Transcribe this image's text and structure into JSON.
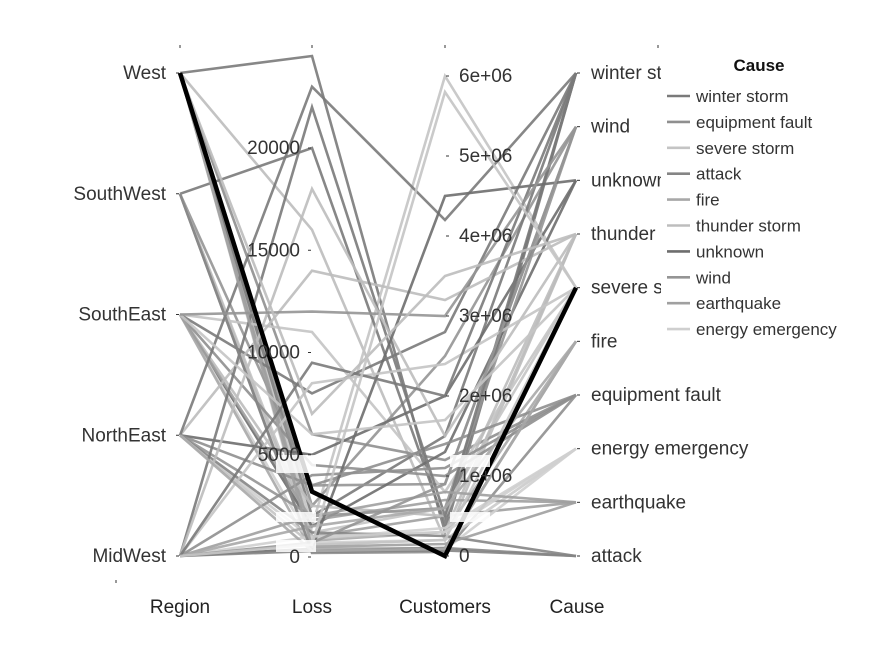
{
  "chart_data": {
    "type": "parallel-coordinates",
    "dimensions": [
      "Region",
      "Loss",
      "Customers",
      "Cause"
    ],
    "axes": {
      "Region": {
        "categories": [
          "MidWest",
          "NorthEast",
          "SouthEast",
          "SouthWest",
          "West"
        ]
      },
      "Loss": {
        "range": [
          0,
          25000
        ],
        "ticks": [
          0,
          5000,
          10000,
          15000,
          20000
        ],
        "tick_labels": [
          "0",
          "5000",
          "10000",
          "15000",
          "20000"
        ]
      },
      "Customers": {
        "range": [
          0,
          6300000
        ],
        "ticks": [
          0,
          1000000,
          2000000,
          3000000,
          4000000,
          5000000,
          6000000
        ],
        "tick_labels": [
          "0",
          "1e+06",
          "2e+06",
          "3e+06",
          "4e+06",
          "5e+06",
          "6e+06"
        ]
      },
      "Cause": {
        "categories": [
          "attack",
          "earthquake",
          "energy emergency",
          "equipment fault",
          "fire",
          "severe storm",
          "thunder storm",
          "unknown",
          "wind",
          "winter storm"
        ],
        "tick_labels": [
          "attack",
          "earthquake",
          "energy emergency",
          "equipment fault",
          "fire",
          "severe storm",
          "thunder storm",
          "unknown",
          "wind",
          "winter storm"
        ]
      }
    },
    "legend": {
      "title": "Cause",
      "position": "right",
      "entries": [
        "winter storm",
        "equipment fault",
        "severe storm",
        "attack",
        "fire",
        "thunder storm",
        "unknown",
        "wind",
        "earthquake",
        "energy emergency"
      ]
    },
    "series_colors": {
      "winter storm": "#7a7a7a",
      "equipment fault": "#8f8f8f",
      "severe storm": "#c4c4c4",
      "attack": "#858585",
      "fire": "#a8a8a8",
      "thunder storm": "#bdbdbd",
      "unknown": "#6e6e6e",
      "wind": "#959595",
      "earthquake": "#a0a0a0",
      "energy emergency": "#cfcfcf"
    },
    "highlight_color": "#000000",
    "highlight": {
      "Region": "West",
      "Loss": 3200,
      "Customers": 0,
      "Cause": "severe storm"
    },
    "records": [
      [
        "West",
        3200,
        0,
        "severe storm"
      ],
      [
        "West",
        24500,
        300000,
        "winter storm"
      ],
      [
        "West",
        16000,
        200000,
        "thunder storm"
      ],
      [
        "West",
        1500,
        6000000,
        "severe storm"
      ],
      [
        "West",
        2500,
        2500000,
        "wind"
      ],
      [
        "West",
        800,
        300000,
        "fire"
      ],
      [
        "West",
        400,
        100000,
        "fire"
      ],
      [
        "West",
        6000,
        1200000,
        "equipment fault"
      ],
      [
        "West",
        1000,
        500000,
        "earthquake"
      ],
      [
        "West",
        300,
        80000,
        "energy emergency"
      ],
      [
        "West",
        2000,
        1500000,
        "winter storm"
      ],
      [
        "SouthWest",
        20000,
        400000,
        "winter storm"
      ],
      [
        "SouthWest",
        600,
        200000,
        "energy emergency"
      ],
      [
        "SouthWest",
        1200,
        600000,
        "severe storm"
      ],
      [
        "SouthWest",
        200,
        50000,
        "equipment fault"
      ],
      [
        "SouthWest",
        3500,
        900000,
        "wind"
      ],
      [
        "SouthWest",
        900,
        300000,
        "thunder storm"
      ],
      [
        "SouthEast",
        11000,
        800000,
        "severe storm"
      ],
      [
        "SouthEast",
        8000,
        2800000,
        "winter storm"
      ],
      [
        "SouthEast",
        2500,
        500000,
        "thunder storm"
      ],
      [
        "SouthEast",
        1500,
        1300000,
        "unknown"
      ],
      [
        "SouthEast",
        700,
        200000,
        "energy emergency"
      ],
      [
        "SouthEast",
        4500,
        1000000,
        "equipment fault"
      ],
      [
        "SouthEast",
        300,
        100000,
        "fire"
      ],
      [
        "SouthEast",
        1800,
        700000,
        "earthquake"
      ],
      [
        "NorthEast",
        14000,
        3200000,
        "thunder storm"
      ],
      [
        "NorthEast",
        23000,
        4200000,
        "winter storm"
      ],
      [
        "NorthEast",
        5000,
        2000000,
        "unknown"
      ],
      [
        "NorthEast",
        2000,
        600000,
        "wind"
      ],
      [
        "NorthEast",
        900,
        350000,
        "energy emergency"
      ],
      [
        "NorthEast",
        1200,
        250000,
        "attack"
      ],
      [
        "NorthEast",
        3500,
        1400000,
        "equipment fault"
      ],
      [
        "NorthEast",
        600,
        200000,
        "severe storm"
      ],
      [
        "MidWest",
        22000,
        500000,
        "winter storm"
      ],
      [
        "MidWest",
        18000,
        1500000,
        "thunder storm"
      ],
      [
        "MidWest",
        400,
        4500000,
        "unknown"
      ],
      [
        "MidWest",
        8500,
        2400000,
        "severe storm"
      ],
      [
        "MidWest",
        1000,
        300000,
        "energy emergency"
      ],
      [
        "MidWest",
        300,
        100000,
        "attack"
      ],
      [
        "MidWest",
        2000,
        800000,
        "earthquake"
      ],
      [
        "MidWest",
        700,
        900000,
        "wind"
      ],
      [
        "MidWest",
        4000,
        1100000,
        "equipment fault"
      ],
      [
        "MidWest",
        1500,
        600000,
        "fire"
      ],
      [
        "West",
        500,
        150000,
        "earthquake"
      ],
      [
        "SouthWest",
        250,
        70000,
        "attack"
      ],
      [
        "SouthEast",
        6000,
        1700000,
        "severe storm"
      ],
      [
        "NorthEast",
        300,
        90000,
        "fire"
      ],
      [
        "MidWest",
        9500,
        2000000,
        "winter storm"
      ],
      [
        "SouthEast",
        12000,
        3000000,
        "wind"
      ],
      [
        "West",
        7000,
        3500000,
        "thunder storm"
      ],
      [
        "MidWest",
        600,
        5800000,
        "severe storm"
      ]
    ]
  }
}
